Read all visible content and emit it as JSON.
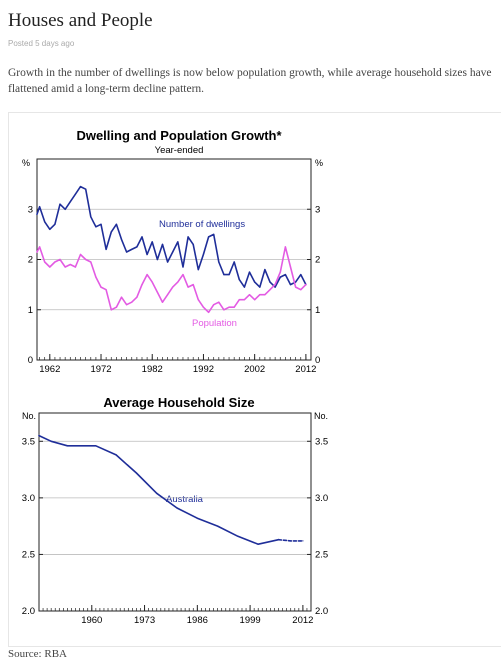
{
  "page": {
    "title": "Houses and People",
    "posted": "Posted 5 days ago",
    "intro": "Growth in the number of dwellings is now below population growth, while average household sizes have flattened amid a long-term decline pattern.",
    "source": "Source: RBA"
  },
  "colors": {
    "dwellings": "#1f2e99",
    "population": "#e35be3",
    "grid": "#bbbbbb"
  },
  "chart_data": [
    {
      "type": "line",
      "title": "Dwelling and Population Growth*",
      "subtitle": "Year-ended",
      "ylabel_left": "%",
      "ylabel_right": "%",
      "ylim": [
        0,
        4
      ],
      "yticks": [
        0,
        1,
        2,
        3
      ],
      "xlim": [
        1959.5,
        2013
      ],
      "xticks": [
        1962,
        1972,
        1982,
        1992,
        2002,
        2012
      ],
      "grid": true,
      "series": [
        {
          "name": "Number of dwellings",
          "x": [
            1959.5,
            1960,
            1961,
            1962,
            1963,
            1964,
            1965,
            1966,
            1967,
            1968,
            1969,
            1970,
            1970.5,
            1971,
            1972,
            1973,
            1974,
            1975,
            1976,
            1977,
            1978,
            1979,
            1980,
            1981,
            1982,
            1983,
            1984,
            1985,
            1986,
            1987,
            1988,
            1989,
            1990,
            1991,
            1992,
            1993,
            1994,
            1995,
            1996,
            1997,
            1998,
            1999,
            2000,
            2001,
            2002,
            2003,
            2004,
            2005,
            2006,
            2007,
            2008,
            2009,
            2010,
            2011,
            2012
          ],
          "y": [
            2.9,
            3.05,
            2.75,
            2.6,
            2.7,
            3.1,
            3.0,
            3.15,
            3.3,
            3.45,
            3.4,
            2.85,
            2.75,
            2.65,
            2.7,
            2.2,
            2.55,
            2.7,
            2.4,
            2.15,
            2.2,
            2.25,
            2.45,
            2.1,
            2.35,
            2.0,
            2.3,
            1.95,
            2.15,
            2.35,
            1.85,
            2.45,
            2.3,
            1.8,
            2.1,
            2.45,
            2.5,
            1.95,
            1.7,
            1.7,
            1.95,
            1.6,
            1.45,
            1.75,
            1.55,
            1.45,
            1.8,
            1.55,
            1.45,
            1.65,
            1.7,
            1.5,
            1.55,
            1.7,
            1.5
          ]
        },
        {
          "name": "Population",
          "x": [
            1959.5,
            1960,
            1961,
            1962,
            1963,
            1964,
            1965,
            1966,
            1967,
            1968,
            1969,
            1970,
            1971,
            1972,
            1973,
            1974,
            1975,
            1976,
            1977,
            1978,
            1979,
            1980,
            1981,
            1982,
            1983,
            1984,
            1985,
            1986,
            1987,
            1988,
            1989,
            1990,
            1991,
            1992,
            1993,
            1994,
            1995,
            1996,
            1997,
            1998,
            1999,
            2000,
            2001,
            2002,
            2003,
            2004,
            2005,
            2006,
            2007,
            2008,
            2009,
            2010,
            2011,
            2012
          ],
          "y": [
            2.15,
            2.25,
            1.95,
            1.85,
            1.95,
            2.0,
            1.85,
            1.9,
            1.85,
            2.1,
            2.0,
            1.95,
            1.65,
            1.45,
            1.4,
            1.0,
            1.05,
            1.25,
            1.1,
            1.15,
            1.25,
            1.5,
            1.7,
            1.55,
            1.35,
            1.15,
            1.3,
            1.45,
            1.55,
            1.7,
            1.45,
            1.5,
            1.2,
            1.05,
            0.95,
            1.1,
            1.15,
            1.0,
            1.05,
            1.05,
            1.2,
            1.2,
            1.3,
            1.2,
            1.3,
            1.3,
            1.4,
            1.5,
            1.75,
            2.25,
            1.85,
            1.45,
            1.4,
            1.5
          ]
        }
      ]
    },
    {
      "type": "line",
      "title": "Average Household Size",
      "ylabel_left": "No.",
      "ylabel_right": "No.",
      "ylim": [
        2.0,
        3.75
      ],
      "yticks": [
        2.0,
        2.5,
        3.0,
        3.5
      ],
      "ytick_labels": [
        "2.0",
        "2.5",
        "3.0",
        "3.5"
      ],
      "xlim": [
        1947,
        2014
      ],
      "xticks": [
        1960,
        1973,
        1986,
        1999,
        2012
      ],
      "grid": true,
      "series": [
        {
          "name": "Australia",
          "x": [
            1947,
            1950,
            1954,
            1961,
            1966,
            1971,
            1976,
            1981,
            1986,
            1991,
            1996,
            2001,
            2006
          ],
          "y": [
            3.55,
            3.5,
            3.46,
            3.46,
            3.38,
            3.22,
            3.04,
            2.91,
            2.82,
            2.75,
            2.66,
            2.59,
            2.63
          ]
        },
        {
          "name": "",
          "style": "dashed",
          "x": [
            2006,
            2009,
            2012
          ],
          "y": [
            2.63,
            2.62,
            2.62
          ]
        }
      ]
    }
  ]
}
